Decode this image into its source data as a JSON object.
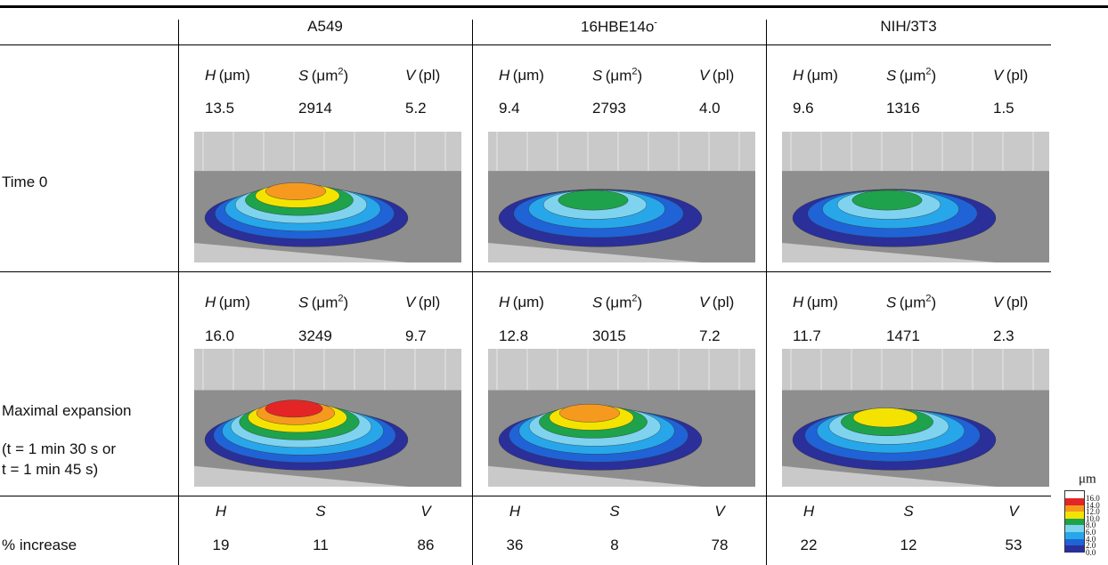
{
  "columns": [
    {
      "name": "A549"
    },
    {
      "name": "16HBE14o",
      "sup": "-"
    },
    {
      "name": "NIH/3T3"
    }
  ],
  "measures": [
    {
      "var": "H",
      "unit": "(μm)"
    },
    {
      "var": "S",
      "unit": "(μm",
      "sup": "2",
      "close": ")"
    },
    {
      "var": "V",
      "unit": "(pl)"
    }
  ],
  "rows": [
    {
      "label": "Time 0",
      "values": [
        [
          "13.5",
          "2914",
          "5.2"
        ],
        [
          "9.4",
          "2793",
          "4.0"
        ],
        [
          "9.6",
          "1316",
          "1.5"
        ]
      ]
    },
    {
      "label": "Maximal expansion",
      "note": [
        "(t = 1 min 30 s or",
        "t = 1 min 45 s)"
      ],
      "values": [
        [
          "16.0",
          "3249",
          "9.7"
        ],
        [
          "12.8",
          "3015",
          "7.2"
        ],
        [
          "11.7",
          "1471",
          "2.3"
        ]
      ]
    }
  ],
  "increase": {
    "label": "% increase",
    "headers": [
      "H",
      "S",
      "V"
    ],
    "values": [
      [
        "19",
        "11",
        "86"
      ],
      [
        "36",
        "8",
        "78"
      ],
      [
        "22",
        "12",
        "53"
      ]
    ]
  },
  "colorbar": {
    "unit": "μm",
    "ticks": [
      "16.0",
      "14.0",
      "12.0",
      "10.0",
      "8.0",
      "6.0",
      "4.0",
      "2.0",
      "0.0"
    ]
  }
}
